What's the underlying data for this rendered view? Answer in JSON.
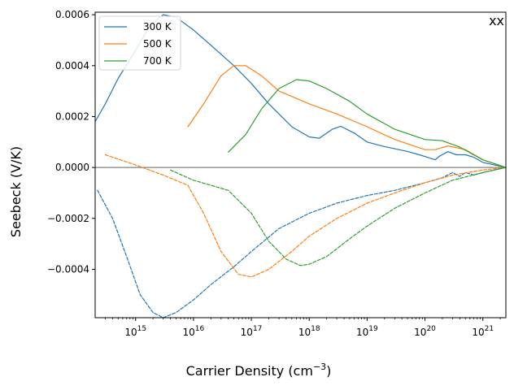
{
  "chart_data": {
    "type": "line",
    "xlabel": "Carrier Density (cm",
    "xlabel_sup": "−3",
    "xlabel_close": ")",
    "ylabel": "Seebeck (V/K)",
    "xscale": "log",
    "xlim": [
      200000000000000.0,
      2.5e+21
    ],
    "ylim": [
      -0.00059,
      0.00061
    ],
    "corner_label": "xx",
    "legend_position": "top-left",
    "reference_line_y": 0,
    "reference_line_color": "#808080",
    "x_ticks": [
      {
        "base": "10",
        "exp": "15",
        "value": 1000000000000000.0
      },
      {
        "base": "10",
        "exp": "16",
        "value": 1e+16
      },
      {
        "base": "10",
        "exp": "17",
        "value": 1e+17
      },
      {
        "base": "10",
        "exp": "18",
        "value": 1e+18
      },
      {
        "base": "10",
        "exp": "19",
        "value": 1e+19
      },
      {
        "base": "10",
        "exp": "20",
        "value": 1e+20
      },
      {
        "base": "10",
        "exp": "21",
        "value": 1e+21
      }
    ],
    "y_ticks": [
      {
        "label": "0.0006",
        "value": 0.0006
      },
      {
        "label": "0.0004",
        "value": 0.0004
      },
      {
        "label": "0.0002",
        "value": 0.0002
      },
      {
        "label": "0.0000",
        "value": 0.0
      },
      {
        "label": "−0.0002",
        "value": -0.0002
      },
      {
        "label": "−0.0004",
        "value": -0.0004
      }
    ],
    "legend": [
      {
        "label": "300 K",
        "color": "#1f77b4"
      },
      {
        "label": "500 K",
        "color": "#ff7f0e"
      },
      {
        "label": "700 K",
        "color": "#2ca02c"
      }
    ],
    "series": [
      {
        "temperature": "300 K",
        "carrier": "positive",
        "style": "solid",
        "color": "#1f77b4",
        "points": [
          [
            200000000000000.0,
            0.00018
          ],
          [
            300000000000000.0,
            0.00025
          ],
          [
            500000000000000.0,
            0.00035
          ],
          [
            1000000000000000.0,
            0.00046
          ],
          [
            1800000000000000.0,
            0.00056
          ],
          [
            3000000000000000.0,
            0.0006
          ],
          [
            5000000000000000.0,
            0.00059
          ],
          [
            1e+16,
            0.00054
          ],
          [
            2e+16,
            0.00048
          ],
          [
            5e+16,
            0.0004
          ],
          [
            1e+17,
            0.00033
          ],
          [
            2e+17,
            0.00025
          ],
          [
            5e+17,
            0.00016
          ],
          [
            1e+18,
            0.00012
          ],
          [
            1.5e+18,
            0.000115
          ],
          [
            2.5e+18,
            0.00015
          ],
          [
            3.5e+18,
            0.000162
          ],
          [
            6e+18,
            0.000135
          ],
          [
            1e+19,
            0.0001
          ],
          [
            2e+19,
            8.2e-05
          ],
          [
            5e+19,
            6.3e-05
          ],
          [
            8e+19,
            5e-05
          ],
          [
            1.1e+20,
            4e-05
          ],
          [
            1.5e+20,
            3e-05
          ],
          [
            1.8e+20,
            4.5e-05
          ],
          [
            2.5e+20,
            6.2e-05
          ],
          [
            3.5e+20,
            5e-05
          ],
          [
            5e+20,
            5e-05
          ],
          [
            7e+20,
            4e-05
          ],
          [
            1e+21,
            2e-05
          ],
          [
            2e+21,
            5e-06
          ],
          [
            2.5e+21,
            0.0
          ]
        ]
      },
      {
        "temperature": "300 K",
        "carrier": "negative",
        "style": "dashed",
        "color": "#1f77b4",
        "points": [
          [
            220000000000000.0,
            -9e-05
          ],
          [
            400000000000000.0,
            -0.0002
          ],
          [
            700000000000000.0,
            -0.00035
          ],
          [
            1200000000000000.0,
            -0.0005
          ],
          [
            2000000000000000.0,
            -0.00057
          ],
          [
            3000000000000000.0,
            -0.00059
          ],
          [
            5000000000000000.0,
            -0.00057
          ],
          [
            1e+16,
            -0.00052
          ],
          [
            2e+16,
            -0.00046
          ],
          [
            5e+16,
            -0.00039
          ],
          [
            1e+17,
            -0.00033
          ],
          [
            3e+17,
            -0.00024
          ],
          [
            1e+18,
            -0.00018
          ],
          [
            3e+18,
            -0.00014
          ],
          [
            1e+19,
            -0.00011
          ],
          [
            3e+19,
            -9e-05
          ],
          [
            1e+20,
            -6e-05
          ],
          [
            2e+20,
            -4e-05
          ],
          [
            3e+20,
            -2e-05
          ],
          [
            4e+20,
            -3.5e-05
          ],
          [
            5e+20,
            -2e-05
          ],
          [
            7e+20,
            -3e-05
          ],
          [
            1e+21,
            -2e-05
          ],
          [
            2.5e+21,
            0.0
          ]
        ]
      },
      {
        "temperature": "500 K",
        "carrier": "positive",
        "style": "solid",
        "color": "#ff7f0e",
        "points": [
          [
            8000000000000000.0,
            0.00016
          ],
          [
            1.5e+16,
            0.00025
          ],
          [
            3e+16,
            0.00036
          ],
          [
            5e+16,
            0.0004
          ],
          [
            8e+16,
            0.0004
          ],
          [
            1.5e+17,
            0.00036
          ],
          [
            3e+17,
            0.0003
          ],
          [
            1e+18,
            0.00025
          ],
          [
            3e+18,
            0.00021
          ],
          [
            1e+19,
            0.00016
          ],
          [
            3e+19,
            0.00011
          ],
          [
            1e+20,
            7e-05
          ],
          [
            1.5e+20,
            7e-05
          ],
          [
            2.5e+20,
            8.5e-05
          ],
          [
            5e+20,
            7e-05
          ],
          [
            1e+21,
            3e-05
          ],
          [
            2.5e+21,
            0.0
          ]
        ]
      },
      {
        "temperature": "500 K",
        "carrier": "negative",
        "style": "dashed",
        "color": "#ff7f0e",
        "points": [
          [
            300000000000000.0,
            5e-05
          ],
          [
            1000000000000000.0,
            1e-05
          ],
          [
            3000000000000000.0,
            -3e-05
          ],
          [
            8000000000000000.0,
            -7e-05
          ],
          [
            1.5e+16,
            -0.00018
          ],
          [
            3e+16,
            -0.00033
          ],
          [
            6e+16,
            -0.00042
          ],
          [
            1e+17,
            -0.00043
          ],
          [
            2e+17,
            -0.0004
          ],
          [
            5e+17,
            -0.00033
          ],
          [
            1e+18,
            -0.00027
          ],
          [
            3e+18,
            -0.0002
          ],
          [
            1e+19,
            -0.00014
          ],
          [
            3e+19,
            -0.0001
          ],
          [
            1e+20,
            -6e-05
          ],
          [
            3e+20,
            -3e-05
          ],
          [
            1e+21,
            -1e-05
          ],
          [
            2.5e+21,
            0.0
          ]
        ]
      },
      {
        "temperature": "700 K",
        "carrier": "positive",
        "style": "solid",
        "color": "#2ca02c",
        "points": [
          [
            4e+16,
            6e-05
          ],
          [
            8e+16,
            0.00013
          ],
          [
            1.5e+17,
            0.00023
          ],
          [
            3e+17,
            0.00031
          ],
          [
            6e+17,
            0.000345
          ],
          [
            1e+18,
            0.00034
          ],
          [
            2e+18,
            0.00031
          ],
          [
            5e+18,
            0.00026
          ],
          [
            1e+19,
            0.00021
          ],
          [
            3e+19,
            0.00015
          ],
          [
            1e+20,
            0.00011
          ],
          [
            2e+20,
            0.000105
          ],
          [
            4e+20,
            8e-05
          ],
          [
            1e+21,
            3e-05
          ],
          [
            2.5e+21,
            0.0
          ]
        ]
      },
      {
        "temperature": "700 K",
        "carrier": "negative",
        "style": "dashed",
        "color": "#2ca02c",
        "points": [
          [
            4000000000000000.0,
            -1e-05
          ],
          [
            1e+16,
            -5e-05
          ],
          [
            4e+16,
            -9e-05
          ],
          [
            1e+17,
            -0.00018
          ],
          [
            2e+17,
            -0.00029
          ],
          [
            4e+17,
            -0.00036
          ],
          [
            7e+17,
            -0.000385
          ],
          [
            1e+18,
            -0.00038
          ],
          [
            2e+18,
            -0.00035
          ],
          [
            5e+18,
            -0.00028
          ],
          [
            1e+19,
            -0.00023
          ],
          [
            3e+19,
            -0.00016
          ],
          [
            1e+20,
            -0.0001
          ],
          [
            3e+20,
            -5e-05
          ],
          [
            1e+21,
            -2e-05
          ],
          [
            2.5e+21,
            0.0
          ]
        ]
      }
    ]
  }
}
